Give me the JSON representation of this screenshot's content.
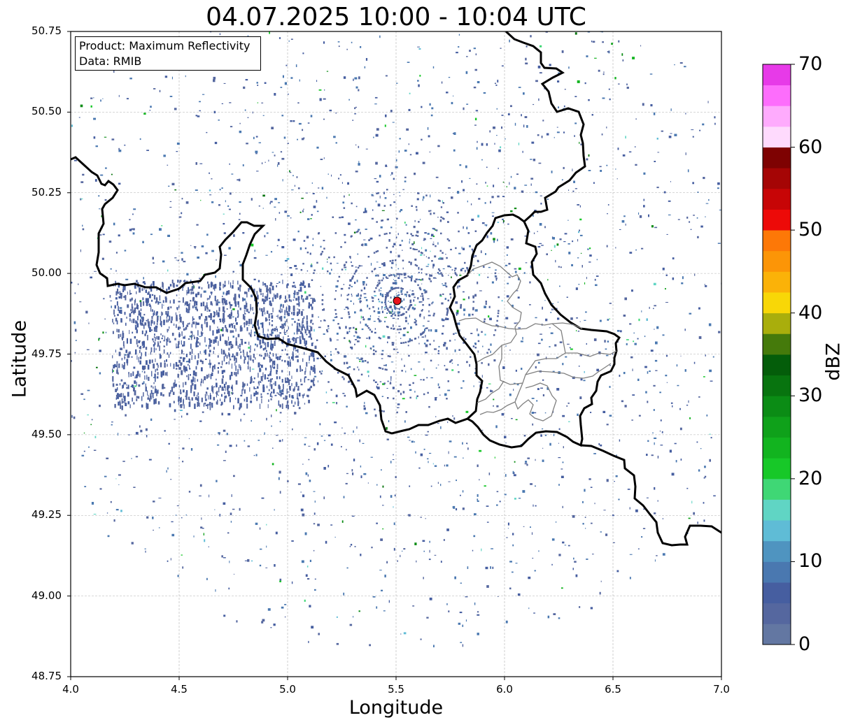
{
  "title": "04.07.2025 10:00 - 10:04 UTC",
  "info_box": {
    "line1": "Product: Maximum Reflectivity",
    "line2": "Data: RMIB"
  },
  "map": {
    "xlabel": "Longitude",
    "ylabel": "Latitude",
    "lon_range": [
      4.0,
      7.0
    ],
    "lat_range": [
      48.75,
      50.75
    ],
    "x_ticks": [
      "4.0",
      "4.5",
      "5.0",
      "5.5",
      "6.0",
      "6.5",
      "7.0"
    ],
    "y_ticks": [
      "50.75",
      "50.50",
      "50.25",
      "50.00",
      "49.75",
      "49.50",
      "49.25",
      "49.00",
      "48.75"
    ],
    "grid": true,
    "radar_site": {
      "lon": 5.505,
      "lat": 49.915,
      "color": "#e8141c"
    }
  },
  "colorbar": {
    "label": "dBZ",
    "range": [
      0,
      70
    ],
    "step": 2.5,
    "tick_labels": [
      "0",
      "10",
      "20",
      "30",
      "40",
      "50",
      "60",
      "70"
    ],
    "colors": [
      "#6377a2",
      "#55679f",
      "#465ea0",
      "#4a78b0",
      "#4f94c0",
      "#5fbcd6",
      "#60d5c4",
      "#3fd775",
      "#17c828",
      "#12b41f",
      "#0fa11a",
      "#0b8c15",
      "#08740f",
      "#045d0a",
      "#457a0b",
      "#a9ae0c",
      "#f8d707",
      "#fbb208",
      "#fc9507",
      "#fd7807",
      "#ed0a08",
      "#c70506",
      "#a50505",
      "#7e0202",
      "#fedafd",
      "#feabfd",
      "#fd6dfc",
      "#e73ae8"
    ]
  }
}
